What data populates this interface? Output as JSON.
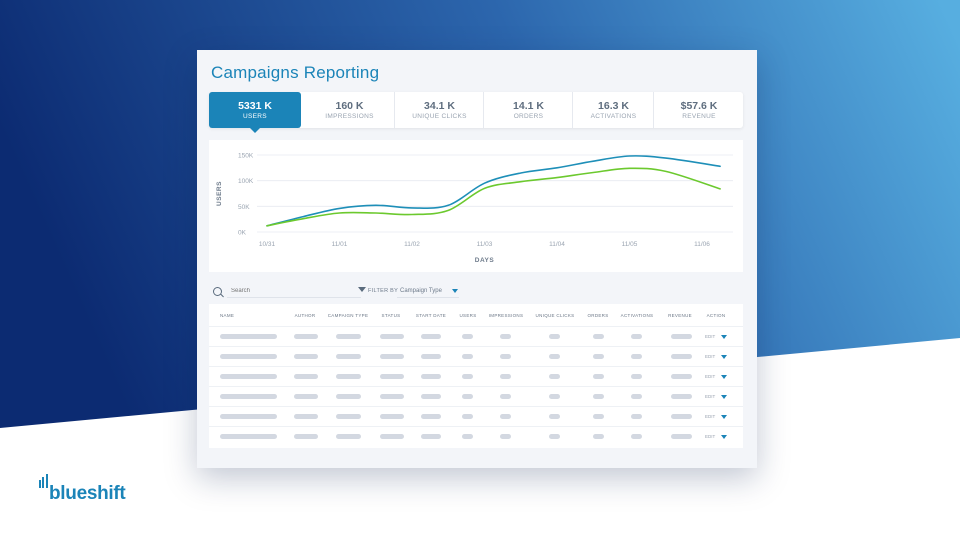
{
  "page": {
    "title": "Campaigns Reporting",
    "colors": {
      "accent": "#1b84b8",
      "bg_dark": "#0c2b72",
      "bg_light": "#57aee0"
    }
  },
  "stats": [
    {
      "value": "5331 K",
      "label": "USERS",
      "active": true
    },
    {
      "value": "160 K",
      "label": "IMPRESSIONS"
    },
    {
      "value": "34.1 K",
      "label": "UNIQUE CLICKS"
    },
    {
      "value": "14.1 K",
      "label": "ORDERS"
    },
    {
      "value": "16.3 K",
      "label": "ACTIVATIONS"
    },
    {
      "value": "$57.6 K",
      "label": "REVENUE"
    }
  ],
  "chart_data": {
    "type": "line",
    "x": [
      "10/31",
      "11/01",
      "11/02",
      "11/03",
      "11/04",
      "11/05",
      "11/06"
    ],
    "xlabel": "DAYS",
    "ylabel": "USERS",
    "yticks": [
      "150K",
      "100K",
      "50K",
      "0K"
    ],
    "ylim": [
      0,
      150000
    ],
    "grid": true,
    "series": [
      {
        "color": "#1e8fb8",
        "points": [
          [
            0,
            12000
          ],
          [
            0.5,
            30000
          ],
          [
            1,
            46000
          ],
          [
            1.5,
            52000
          ],
          [
            2,
            47000
          ],
          [
            2.5,
            52000
          ],
          [
            3,
            95000
          ],
          [
            3.5,
            115000
          ],
          [
            4,
            125000
          ],
          [
            4.5,
            138000
          ],
          [
            5,
            148000
          ],
          [
            5.5,
            144000
          ],
          [
            6.25,
            128000
          ]
        ]
      },
      {
        "color": "#6cc92e",
        "points": [
          [
            0,
            12000
          ],
          [
            0.5,
            26000
          ],
          [
            1,
            37000
          ],
          [
            1.5,
            37000
          ],
          [
            2,
            34000
          ],
          [
            2.5,
            42000
          ],
          [
            3,
            85000
          ],
          [
            3.5,
            98000
          ],
          [
            4,
            106000
          ],
          [
            4.5,
            116000
          ],
          [
            5,
            124000
          ],
          [
            5.5,
            118000
          ],
          [
            6.25,
            84000
          ]
        ]
      }
    ]
  },
  "toolbar": {
    "search_placeholder": "Search",
    "filter_label": "FILTER BY",
    "filter_value": "Campaign Type",
    "search_icon": "search-icon",
    "filter_icon": "filter-icon"
  },
  "table": {
    "headers": [
      "NAME",
      "AUTHOR",
      "CAMPAIGN TYPE",
      "STATUS",
      "START DATE",
      "USERS",
      "IMPRESSIONS",
      "UNIQUE CLICKS",
      "ORDERS",
      "ACTIVATIONS",
      "REVENUE",
      "ACTION"
    ],
    "edit_label": "EDIT",
    "row_count": 6
  },
  "brand": {
    "name": "blueshift"
  }
}
